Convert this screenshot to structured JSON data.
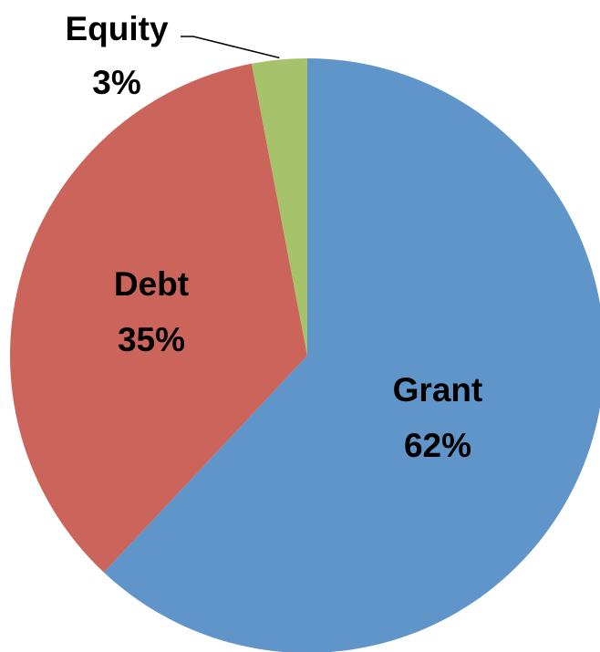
{
  "chart_data": {
    "type": "pie",
    "title": "",
    "start": "12 o'clock",
    "direction": "clockwise",
    "legend": "none",
    "slices": [
      {
        "name": "Grant",
        "value": 62,
        "label": "62%",
        "color": "#5f95c8"
      },
      {
        "name": "Debt",
        "value": 35,
        "label": "35%",
        "color": "#cb645b"
      },
      {
        "name": "Equity",
        "value": 3,
        "label": "3%",
        "color": "#a6c36b"
      }
    ],
    "leader_line_color": "#000000"
  }
}
